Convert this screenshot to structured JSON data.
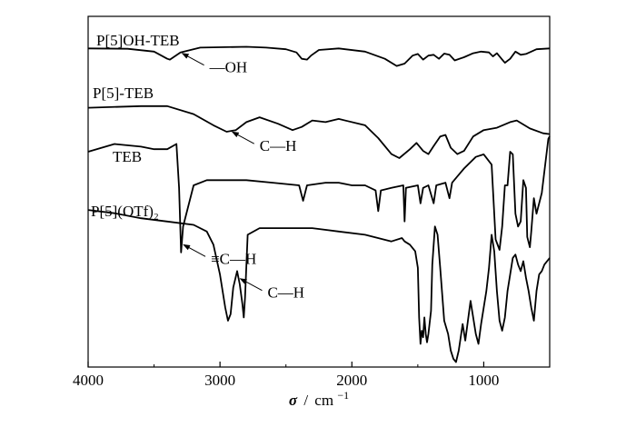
{
  "chart_data": {
    "type": "line",
    "xlabel_symbol": "σ",
    "xlabel_sep": "/",
    "xlabel_unit": "cm",
    "xlabel_exp": "−1",
    "xlim": [
      4000,
      500
    ],
    "xticks": [
      4000,
      3000,
      2000,
      1000
    ],
    "xtick_labels": [
      "4000",
      "3000",
      "2000",
      "1000"
    ],
    "series": [
      {
        "name": "P[5]OH-TEB",
        "points": [
          [
            4000,
            0.88
          ],
          [
            3700,
            0.87
          ],
          [
            3500,
            0.8
          ],
          [
            3400,
            0.62
          ],
          [
            3380,
            0.6
          ],
          [
            3300,
            0.78
          ],
          [
            3150,
            0.9
          ],
          [
            2800,
            0.92
          ],
          [
            2650,
            0.9
          ],
          [
            2500,
            0.86
          ],
          [
            2420,
            0.78
          ],
          [
            2380,
            0.62
          ],
          [
            2340,
            0.6
          ],
          [
            2310,
            0.7
          ],
          [
            2250,
            0.84
          ],
          [
            2100,
            0.88
          ],
          [
            1900,
            0.8
          ],
          [
            1750,
            0.62
          ],
          [
            1660,
            0.44
          ],
          [
            1600,
            0.5
          ],
          [
            1540,
            0.7
          ],
          [
            1500,
            0.74
          ],
          [
            1460,
            0.6
          ],
          [
            1420,
            0.7
          ],
          [
            1380,
            0.72
          ],
          [
            1340,
            0.62
          ],
          [
            1300,
            0.75
          ],
          [
            1260,
            0.72
          ],
          [
            1220,
            0.58
          ],
          [
            1150,
            0.66
          ],
          [
            1080,
            0.76
          ],
          [
            1020,
            0.8
          ],
          [
            960,
            0.78
          ],
          [
            930,
            0.68
          ],
          [
            900,
            0.76
          ],
          [
            860,
            0.6
          ],
          [
            840,
            0.52
          ],
          [
            800,
            0.62
          ],
          [
            760,
            0.8
          ],
          [
            720,
            0.72
          ],
          [
            680,
            0.74
          ],
          [
            600,
            0.86
          ],
          [
            500,
            0.88
          ]
        ],
        "color": "#000000"
      },
      {
        "name": "P[5]-TEB",
        "points": [
          [
            4000,
            0.88
          ],
          [
            3600,
            0.9
          ],
          [
            3400,
            0.9
          ],
          [
            3200,
            0.8
          ],
          [
            3050,
            0.66
          ],
          [
            2950,
            0.58
          ],
          [
            2880,
            0.6
          ],
          [
            2800,
            0.7
          ],
          [
            2700,
            0.76
          ],
          [
            2560,
            0.68
          ],
          [
            2450,
            0.6
          ],
          [
            2380,
            0.64
          ],
          [
            2300,
            0.72
          ],
          [
            2200,
            0.7
          ],
          [
            2100,
            0.74
          ],
          [
            1900,
            0.66
          ],
          [
            1800,
            0.5
          ],
          [
            1700,
            0.3
          ],
          [
            1640,
            0.25
          ],
          [
            1560,
            0.36
          ],
          [
            1510,
            0.44
          ],
          [
            1460,
            0.34
          ],
          [
            1420,
            0.3
          ],
          [
            1380,
            0.4
          ],
          [
            1330,
            0.52
          ],
          [
            1290,
            0.54
          ],
          [
            1250,
            0.38
          ],
          [
            1200,
            0.3
          ],
          [
            1150,
            0.34
          ],
          [
            1080,
            0.52
          ],
          [
            1000,
            0.6
          ],
          [
            900,
            0.63
          ],
          [
            800,
            0.7
          ],
          [
            750,
            0.72
          ],
          [
            650,
            0.62
          ],
          [
            550,
            0.56
          ],
          [
            500,
            0.55
          ]
        ],
        "color": "#000000"
      },
      {
        "name": "TEB",
        "points": [
          [
            4000,
            0.88
          ],
          [
            3800,
            0.94
          ],
          [
            3600,
            0.92
          ],
          [
            3500,
            0.9
          ],
          [
            3400,
            0.9
          ],
          [
            3330,
            0.94
          ],
          [
            3310,
            0.6
          ],
          [
            3295,
            0.1
          ],
          [
            3280,
            0.3
          ],
          [
            3200,
            0.62
          ],
          [
            3100,
            0.66
          ],
          [
            3000,
            0.66
          ],
          [
            2800,
            0.66
          ],
          [
            2600,
            0.64
          ],
          [
            2400,
            0.62
          ],
          [
            2370,
            0.5
          ],
          [
            2340,
            0.62
          ],
          [
            2200,
            0.64
          ],
          [
            2100,
            0.64
          ],
          [
            2000,
            0.62
          ],
          [
            1900,
            0.62
          ],
          [
            1820,
            0.58
          ],
          [
            1800,
            0.42
          ],
          [
            1780,
            0.58
          ],
          [
            1700,
            0.6
          ],
          [
            1610,
            0.62
          ],
          [
            1600,
            0.34
          ],
          [
            1590,
            0.6
          ],
          [
            1500,
            0.62
          ],
          [
            1480,
            0.48
          ],
          [
            1460,
            0.6
          ],
          [
            1420,
            0.62
          ],
          [
            1380,
            0.48
          ],
          [
            1360,
            0.62
          ],
          [
            1290,
            0.64
          ],
          [
            1260,
            0.52
          ],
          [
            1240,
            0.64
          ],
          [
            1150,
            0.75
          ],
          [
            1060,
            0.84
          ],
          [
            1000,
            0.86
          ],
          [
            940,
            0.78
          ],
          [
            910,
            0.2
          ],
          [
            880,
            0.12
          ],
          [
            860,
            0.3
          ],
          [
            840,
            0.62
          ],
          [
            820,
            0.62
          ],
          [
            800,
            0.88
          ],
          [
            780,
            0.86
          ],
          [
            760,
            0.4
          ],
          [
            740,
            0.3
          ],
          [
            720,
            0.34
          ],
          [
            700,
            0.66
          ],
          [
            680,
            0.6
          ],
          [
            670,
            0.22
          ],
          [
            650,
            0.14
          ],
          [
            640,
            0.26
          ],
          [
            620,
            0.52
          ],
          [
            600,
            0.4
          ],
          [
            560,
            0.56
          ],
          [
            510,
            0.98
          ],
          [
            500,
            1.0
          ]
        ],
        "color": "#000000"
      },
      {
        "name": "P[5](OTf)₂",
        "points": [
          [
            4000,
            0.95
          ],
          [
            3800,
            0.93
          ],
          [
            3600,
            0.9
          ],
          [
            3400,
            0.88
          ],
          [
            3200,
            0.86
          ],
          [
            3100,
            0.82
          ],
          [
            3050,
            0.74
          ],
          [
            3000,
            0.56
          ],
          [
            2960,
            0.36
          ],
          [
            2940,
            0.28
          ],
          [
            2920,
            0.32
          ],
          [
            2900,
            0.48
          ],
          [
            2870,
            0.58
          ],
          [
            2850,
            0.5
          ],
          [
            2830,
            0.38
          ],
          [
            2820,
            0.3
          ],
          [
            2810,
            0.42
          ],
          [
            2790,
            0.8
          ],
          [
            2700,
            0.84
          ],
          [
            2500,
            0.84
          ],
          [
            2300,
            0.84
          ],
          [
            2100,
            0.82
          ],
          [
            1900,
            0.8
          ],
          [
            1700,
            0.76
          ],
          [
            1620,
            0.78
          ],
          [
            1600,
            0.76
          ],
          [
            1560,
            0.74
          ],
          [
            1520,
            0.7
          ],
          [
            1500,
            0.6
          ],
          [
            1490,
            0.3
          ],
          [
            1480,
            0.14
          ],
          [
            1470,
            0.22
          ],
          [
            1460,
            0.18
          ],
          [
            1450,
            0.3
          ],
          [
            1440,
            0.2
          ],
          [
            1430,
            0.15
          ],
          [
            1420,
            0.2
          ],
          [
            1400,
            0.34
          ],
          [
            1390,
            0.62
          ],
          [
            1370,
            0.85
          ],
          [
            1350,
            0.8
          ],
          [
            1330,
            0.6
          ],
          [
            1300,
            0.28
          ],
          [
            1270,
            0.2
          ],
          [
            1250,
            0.1
          ],
          [
            1230,
            0.05
          ],
          [
            1210,
            0.03
          ],
          [
            1190,
            0.1
          ],
          [
            1160,
            0.26
          ],
          [
            1140,
            0.16
          ],
          [
            1120,
            0.28
          ],
          [
            1100,
            0.4
          ],
          [
            1080,
            0.3
          ],
          [
            1060,
            0.2
          ],
          [
            1040,
            0.14
          ],
          [
            1020,
            0.26
          ],
          [
            1000,
            0.36
          ],
          [
            980,
            0.46
          ],
          [
            960,
            0.6
          ],
          [
            940,
            0.8
          ],
          [
            920,
            0.7
          ],
          [
            900,
            0.46
          ],
          [
            880,
            0.28
          ],
          [
            860,
            0.22
          ],
          [
            840,
            0.3
          ],
          [
            820,
            0.46
          ],
          [
            800,
            0.56
          ],
          [
            780,
            0.66
          ],
          [
            760,
            0.68
          ],
          [
            740,
            0.62
          ],
          [
            720,
            0.58
          ],
          [
            700,
            0.64
          ],
          [
            680,
            0.54
          ],
          [
            660,
            0.46
          ],
          [
            640,
            0.36
          ],
          [
            620,
            0.28
          ],
          [
            600,
            0.46
          ],
          [
            580,
            0.56
          ],
          [
            560,
            0.58
          ],
          [
            540,
            0.62
          ],
          [
            500,
            0.66
          ]
        ],
        "color": "#000000"
      }
    ],
    "annotations": [
      {
        "text": "—OH",
        "tip_x": 3300,
        "series": 0
      },
      {
        "text": "C—H",
        "tip_x": 2920,
        "series": 1
      },
      {
        "text": "≡C—H",
        "tip_x": 3290,
        "series": 2
      },
      {
        "text": "C—H",
        "tip_x": 2860,
        "series": 3
      }
    ]
  }
}
